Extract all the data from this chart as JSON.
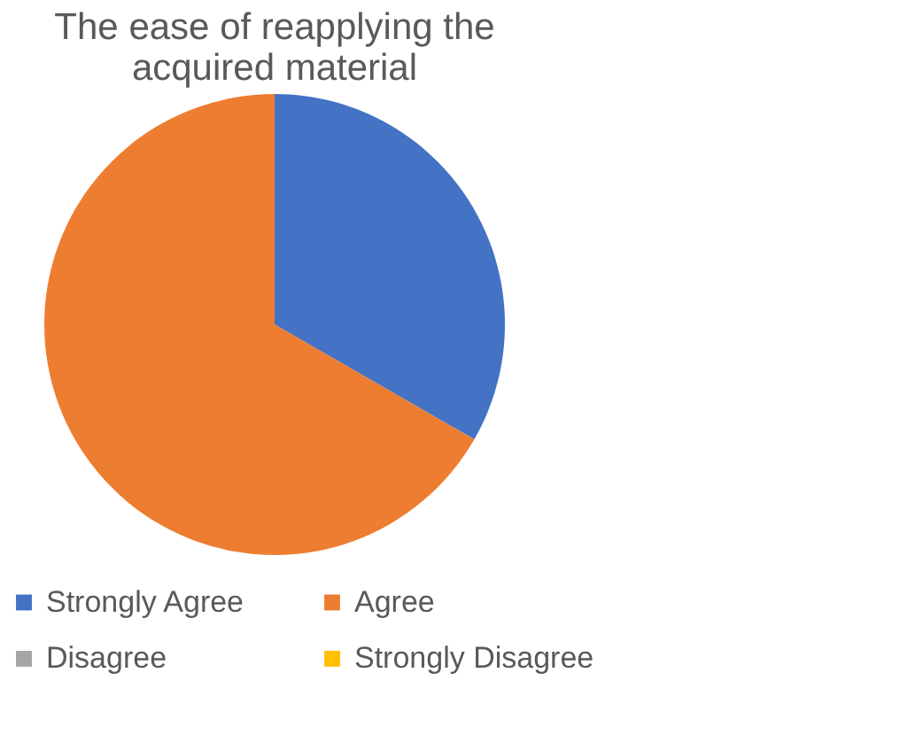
{
  "chart_data": {
    "type": "pie",
    "title": "The ease of reapplying the acquired material",
    "categories": [
      "Strongly Agree",
      "Agree",
      "Disagree",
      "Strongly Disagree"
    ],
    "values": [
      33.3,
      66.7,
      0,
      0
    ],
    "colors": [
      "#4472c4",
      "#ed7d31",
      "#a5a5a5",
      "#ffc000"
    ],
    "legend": "bottom"
  }
}
